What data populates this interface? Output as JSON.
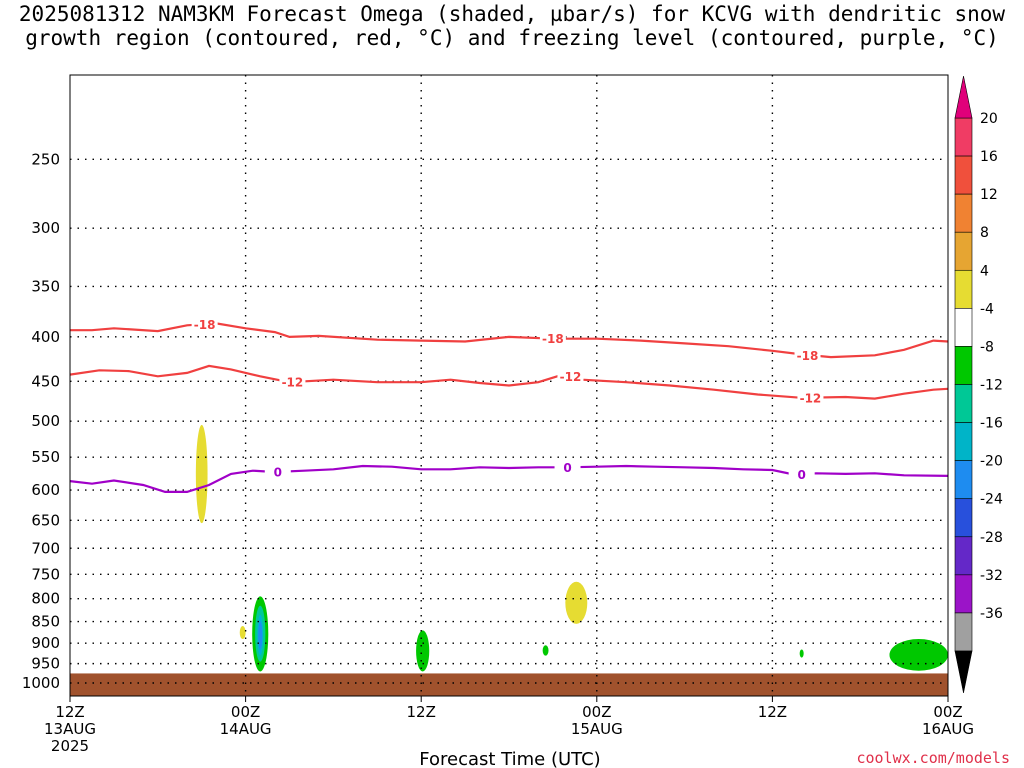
{
  "chart": {
    "title_line1": "2025081312 NAM3KM Forecast Omega (shaded, µbar/s) for KCVG with dendritic snow",
    "title_line2": "growth region (contoured, red, °C) and freezing level (contoured, purple, °C)",
    "xlabel": "Forecast Time (UTC)",
    "credit": "coolwx.com/models"
  },
  "chart_data": {
    "type": "contour",
    "x_axis": {
      "unit": "hours since 12Z 13AUG 2025",
      "range": [
        0,
        60
      ],
      "ticks": [
        {
          "x": 0,
          "line1": "12Z",
          "line2": "13AUG",
          "line3": "2025"
        },
        {
          "x": 12,
          "line1": "00Z",
          "line2": "14AUG",
          "line3": ""
        },
        {
          "x": 24,
          "line1": "12Z",
          "line2": "",
          "line3": ""
        },
        {
          "x": 36,
          "line1": "00Z",
          "line2": "15AUG",
          "line3": ""
        },
        {
          "x": 48,
          "line1": "12Z",
          "line2": "",
          "line3": ""
        },
        {
          "x": 60,
          "line1": "00Z",
          "line2": "16AUG",
          "line3": ""
        }
      ]
    },
    "y_axis": {
      "unit": "hPa",
      "scale": "log",
      "reversed": true,
      "range": [
        1035,
        200
      ],
      "ticks": [
        250,
        300,
        350,
        400,
        450,
        500,
        550,
        600,
        650,
        700,
        750,
        800,
        850,
        900,
        950,
        1000
      ],
      "grid": true
    },
    "surface_fill": {
      "top_hpa": 975,
      "color": "#a0522d"
    },
    "contours": [
      {
        "label": "-18",
        "color": "#f04040",
        "points": [
          [
            0,
            393
          ],
          [
            1.5,
            393
          ],
          [
            3,
            391
          ],
          [
            6,
            394
          ],
          [
            8,
            388
          ],
          [
            10,
            386
          ],
          [
            12,
            391
          ],
          [
            14,
            395
          ],
          [
            15,
            400
          ],
          [
            17,
            399
          ],
          [
            21,
            403
          ],
          [
            24,
            404
          ],
          [
            27,
            405
          ],
          [
            30,
            400
          ],
          [
            33,
            402
          ],
          [
            36,
            402
          ],
          [
            39,
            404
          ],
          [
            42,
            407
          ],
          [
            45,
            410
          ],
          [
            48,
            415
          ],
          [
            50,
            419
          ],
          [
            52,
            422
          ],
          [
            55,
            420
          ],
          [
            57,
            414
          ],
          [
            59,
            404
          ],
          [
            60,
            405
          ]
        ],
        "label_at": [
          [
            9.2,
            387
          ],
          [
            33,
            402
          ],
          [
            50.4,
            420
          ]
        ]
      },
      {
        "label": "-12",
        "color": "#f04040",
        "points": [
          [
            0,
            442
          ],
          [
            2,
            437
          ],
          [
            4,
            438
          ],
          [
            6,
            444
          ],
          [
            8,
            440
          ],
          [
            9.5,
            432
          ],
          [
            11,
            436
          ],
          [
            13,
            444
          ],
          [
            15,
            451
          ],
          [
            18,
            448
          ],
          [
            21,
            451
          ],
          [
            24,
            451
          ],
          [
            26,
            448
          ],
          [
            28,
            452
          ],
          [
            30,
            455
          ],
          [
            32,
            451
          ],
          [
            33.5,
            443
          ],
          [
            35,
            448
          ],
          [
            38,
            451
          ],
          [
            41,
            455
          ],
          [
            44,
            460
          ],
          [
            47,
            466
          ],
          [
            50,
            470
          ],
          [
            53,
            469
          ],
          [
            55,
            471
          ],
          [
            57,
            465
          ],
          [
            59,
            460
          ],
          [
            60,
            459
          ]
        ],
        "label_at": [
          [
            15.2,
            451
          ],
          [
            34.2,
            444
          ],
          [
            50.6,
            470
          ]
        ]
      },
      {
        "label": "0",
        "color": "#a000c8",
        "points": [
          [
            0,
            586
          ],
          [
            1.5,
            590
          ],
          [
            3,
            585
          ],
          [
            5,
            592
          ],
          [
            6.5,
            603
          ],
          [
            8,
            603
          ],
          [
            9.5,
            592
          ],
          [
            11,
            575
          ],
          [
            12.5,
            570
          ],
          [
            14,
            572
          ],
          [
            16,
            570
          ],
          [
            18,
            568
          ],
          [
            20,
            563
          ],
          [
            22,
            564
          ],
          [
            24,
            568
          ],
          [
            26,
            568
          ],
          [
            28,
            565
          ],
          [
            30,
            566
          ],
          [
            32,
            565
          ],
          [
            34,
            565
          ],
          [
            36,
            564
          ],
          [
            38,
            563
          ],
          [
            40,
            564
          ],
          [
            42,
            565
          ],
          [
            44,
            566
          ],
          [
            46,
            568
          ],
          [
            48,
            569
          ],
          [
            49.5,
            576
          ],
          [
            51,
            574
          ],
          [
            53,
            575
          ],
          [
            55,
            574
          ],
          [
            57,
            577
          ],
          [
            60,
            578
          ]
        ],
        "label_at": [
          [
            14.2,
            572
          ],
          [
            34,
            565
          ],
          [
            50,
            576
          ]
        ]
      }
    ],
    "omega_blobs": [
      {
        "value_range": "4 to 8",
        "color": "#e6dc32",
        "center": [
          9.0,
          565
        ],
        "half_width_hours": 0.4,
        "top_hpa": 505,
        "bottom_hpa": 655
      },
      {
        "value_range": "4 to 8",
        "color": "#e6dc32",
        "center": [
          11.8,
          872
        ],
        "half_width_hours": 0.2,
        "top_hpa": 860,
        "bottom_hpa": 890
      },
      {
        "value_range": "-8 to -4",
        "color": "#00c800",
        "center": [
          13.0,
          880
        ],
        "half_width_hours": 0.55,
        "top_hpa": 795,
        "bottom_hpa": 970
      },
      {
        "value_range": "-12 to -8",
        "color": "#00c896",
        "center": [
          13.0,
          875
        ],
        "half_width_hours": 0.35,
        "top_hpa": 815,
        "bottom_hpa": 945
      },
      {
        "value_range": "-16 to -12",
        "color": "#00b4d2",
        "center": [
          13.0,
          880
        ],
        "half_width_hours": 0.2,
        "top_hpa": 835,
        "bottom_hpa": 930
      },
      {
        "value_range": "-20 to -16",
        "color": "#1e8cf0",
        "center": [
          13.0,
          880
        ],
        "half_width_hours": 0.08,
        "top_hpa": 850,
        "bottom_hpa": 915
      },
      {
        "value_range": "-8 to -4",
        "color": "#00c800",
        "center": [
          24.1,
          925
        ],
        "half_width_hours": 0.45,
        "top_hpa": 870,
        "bottom_hpa": 970
      },
      {
        "value_range": "-8 to -4",
        "color": "#00c800",
        "center": [
          32.5,
          918
        ],
        "half_width_hours": 0.2,
        "top_hpa": 905,
        "bottom_hpa": 930
      },
      {
        "value_range": "4 to 8",
        "color": "#e6dc32",
        "center": [
          34.6,
          808
        ],
        "half_width_hours": 0.75,
        "top_hpa": 765,
        "bottom_hpa": 855
      },
      {
        "value_range": "-8 to -4",
        "color": "#00c800",
        "center": [
          50.0,
          925
        ],
        "half_width_hours": 0.12,
        "top_hpa": 915,
        "bottom_hpa": 935
      },
      {
        "value_range": "-8 to -4",
        "color": "#00c800",
        "center": [
          58.0,
          935
        ],
        "half_width_hours": 2.0,
        "top_hpa": 890,
        "bottom_hpa": 968
      }
    ]
  },
  "colorbar": {
    "unit": "µbar/s",
    "bins": [
      {
        "label": "20",
        "color": "#f03c64"
      },
      {
        "label": "16",
        "color": "#f0503c"
      },
      {
        "label": "12",
        "color": "#f08232"
      },
      {
        "label": "8",
        "color": "#e6a532"
      },
      {
        "label": "4",
        "color": "#e6dc32"
      },
      {
        "label": "-4",
        "color": "#ffffff"
      },
      {
        "label": "-8",
        "color": "#00c800"
      },
      {
        "label": "-12",
        "color": "#00c896"
      },
      {
        "label": "-16",
        "color": "#00b4c8"
      },
      {
        "label": "-20",
        "color": "#1e8cf0"
      },
      {
        "label": "-24",
        "color": "#2850dc"
      },
      {
        "label": "-28",
        "color": "#6428c8"
      },
      {
        "label": "-32",
        "color": "#9b14c8"
      },
      {
        "label": "-36",
        "color": "#a0a0a0"
      }
    ],
    "top_arrow_color": "#e0007a",
    "bottom_arrow_color": "#000000"
  }
}
